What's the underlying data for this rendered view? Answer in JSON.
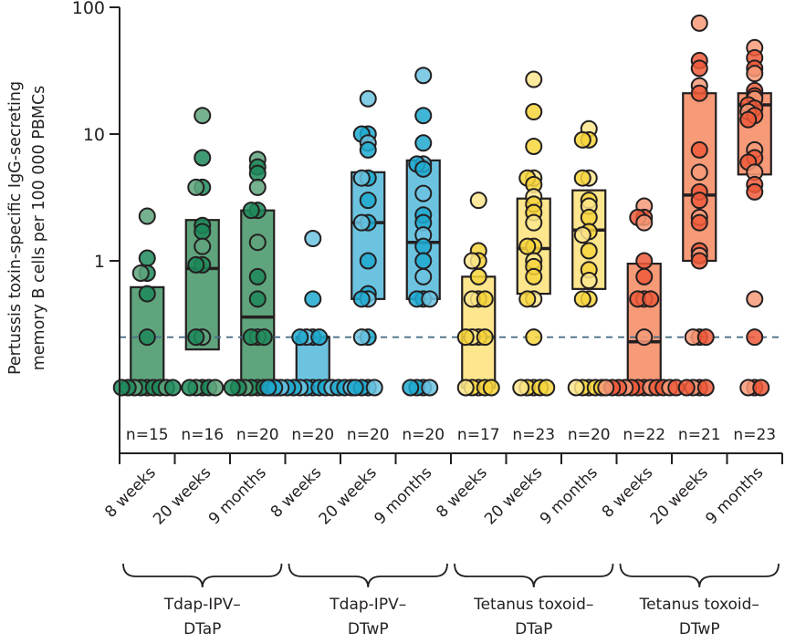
{
  "chart_data": {
    "type": "scatter",
    "subtype": "box-with-jittered-points",
    "title": "",
    "ylabel": [
      "Pertussis toxin-specific IgG-secreting",
      "memory B cells per 100 000 PBMCs"
    ],
    "yscale": "log",
    "ylim": [
      0.1,
      100
    ],
    "yticks": [
      {
        "value": 1,
        "label": "1"
      },
      {
        "value": 10,
        "label": "10"
      },
      {
        "value": 100,
        "label": "100"
      }
    ],
    "reference_line": {
      "value": 0.25,
      "style": "dashed",
      "color": "#4a6f87"
    },
    "groups": [
      {
        "label_lines": [
          "Tdap-IPV–",
          "DTaP"
        ],
        "fill": "#5fa47c",
        "dot": "#1d8a5a"
      },
      {
        "label_lines": [
          "Tdap-IPV–",
          "DTwP"
        ],
        "fill": "#6cc3e0",
        "dot": "#1fa9cf"
      },
      {
        "label_lines": [
          "Tetanus toxoid–",
          "DTaP"
        ],
        "fill": "#fde68d",
        "dot": "#f7d53c"
      },
      {
        "label_lines": [
          "Tetanus toxoid–",
          "DTwP"
        ],
        "fill": "#f79a78",
        "dot": "#ee5a3a"
      }
    ],
    "categories": [
      {
        "group": 0,
        "label": "8 weeks",
        "n": "n=15",
        "box": {
          "low": 0.1,
          "median": 0.1,
          "high": 0.62
        },
        "points": [
          2.25,
          1.05,
          0.8,
          0.8,
          0.55,
          0.25,
          0.1,
          0.1,
          0.1,
          0.1,
          0.1,
          0.1,
          0.1,
          0.1,
          0.1
        ]
      },
      {
        "group": 0,
        "label": "20 weeks",
        "n": "n=16",
        "box": {
          "low": 0.2,
          "median": 0.87,
          "high": 2.1
        },
        "points": [
          14,
          6.5,
          3.8,
          3.8,
          1.9,
          1.7,
          1.3,
          0.93,
          0.93,
          0.25,
          0.25,
          0.1,
          0.1,
          0.1,
          0.1,
          0.1
        ]
      },
      {
        "group": 0,
        "label": "9 months",
        "n": "n=20",
        "box": {
          "low": 0.1,
          "median": 0.36,
          "high": 2.5
        },
        "points": [
          6.3,
          5.5,
          4.9,
          3.8,
          2.5,
          2.5,
          1.4,
          0.75,
          0.5,
          0.25,
          0.25,
          0.25,
          0.1,
          0.1,
          0.1,
          0.1,
          0.1,
          0.1,
          0.1,
          0.1
        ]
      },
      {
        "group": 1,
        "label": "8 weeks",
        "n": "n=20",
        "box": {
          "low": 0.1,
          "median": 0.25,
          "high": 0.25
        },
        "points": [
          1.5,
          0.5,
          0.25,
          0.25,
          0.25,
          0.25,
          0.1,
          0.1,
          0.1,
          0.1,
          0.1,
          0.1,
          0.1,
          0.1,
          0.1,
          0.1,
          0.1,
          0.1,
          0.1,
          0.1
        ]
      },
      {
        "group": 1,
        "label": "20 weeks",
        "n": "n=20",
        "box": {
          "low": 0.5,
          "median": 2.0,
          "high": 5.0
        },
        "points": [
          19,
          10,
          10,
          8.5,
          7.5,
          4.5,
          4.5,
          3.0,
          2.0,
          2.0,
          1.0,
          0.55,
          0.5,
          0.5,
          0.25,
          0.25,
          0.1,
          0.1,
          0.1,
          0.1
        ]
      },
      {
        "group": 1,
        "label": "9 months",
        "n": "n=20",
        "box": {
          "low": 0.5,
          "median": 1.4,
          "high": 6.2
        },
        "points": [
          29,
          14,
          8.5,
          5.8,
          5.8,
          5.3,
          3.4,
          2.3,
          2.0,
          1.6,
          1.3,
          1.0,
          0.75,
          0.5,
          0.5,
          0.5,
          0.1,
          0.1,
          0.1,
          0.1
        ]
      },
      {
        "group": 2,
        "label": "8 weeks",
        "n": "n=17",
        "box": {
          "low": 0.1,
          "median": 0.25,
          "high": 0.75
        },
        "points": [
          3.0,
          1.2,
          1.0,
          1.0,
          0.75,
          0.5,
          0.5,
          0.5,
          0.25,
          0.25,
          0.25,
          0.25,
          0.1,
          0.1,
          0.1,
          0.1,
          0.1
        ]
      },
      {
        "group": 2,
        "label": "20 weeks",
        "n": "n=23",
        "box": {
          "low": 0.55,
          "median": 1.25,
          "high": 3.1
        },
        "points": [
          27,
          15,
          8,
          4.5,
          4.5,
          4.0,
          3.2,
          2.8,
          2.4,
          2.0,
          1.3,
          1.3,
          1.0,
          0.9,
          0.75,
          0.5,
          0.5,
          0.25,
          0.1,
          0.1,
          0.1,
          0.1,
          0.1
        ]
      },
      {
        "group": 2,
        "label": "9 months",
        "n": "n=20",
        "box": {
          "low": 0.6,
          "median": 1.75,
          "high": 3.6
        },
        "points": [
          11,
          9,
          9,
          4.5,
          4.5,
          3.0,
          2.7,
          2.2,
          1.7,
          1.6,
          1.2,
          0.85,
          0.7,
          0.5,
          0.5,
          0.1,
          0.1,
          0.1,
          0.1,
          0.1
        ]
      },
      {
        "group": 3,
        "label": "8 weeks",
        "n": "n=22",
        "box": {
          "low": 0.1,
          "median": 0.23,
          "high": 0.95
        },
        "points": [
          2.7,
          2.2,
          2.2,
          2.0,
          1.0,
          0.75,
          0.5,
          0.5,
          0.5,
          0.25,
          0.1,
          0.1,
          0.1,
          0.1,
          0.1,
          0.1,
          0.1,
          0.1,
          0.1,
          0.1,
          0.1,
          0.1
        ]
      },
      {
        "group": 3,
        "label": "20 weeks",
        "n": "n=21",
        "box": {
          "low": 1.0,
          "median": 3.3,
          "high": 21
        },
        "points": [
          75,
          38,
          33,
          24,
          21,
          7.5,
          5.0,
          3.5,
          3.0,
          2.2,
          2.0,
          1.2,
          1.1,
          1.0,
          0.25,
          0.25,
          0.25,
          0.1,
          0.1,
          0.1,
          0.1
        ]
      },
      {
        "group": 3,
        "label": "9 months",
        "n": "n=23",
        "box": {
          "low": 4.8,
          "median": 17,
          "high": 21
        },
        "points": [
          48,
          40,
          33,
          30,
          22,
          20,
          19,
          17,
          16,
          15,
          14,
          13,
          7.5,
          6.5,
          6.0,
          5.0,
          4.0,
          3.5,
          0.5,
          0.25,
          0.1,
          0.1,
          0.1
        ]
      }
    ],
    "grid": false,
    "legend": "none"
  }
}
